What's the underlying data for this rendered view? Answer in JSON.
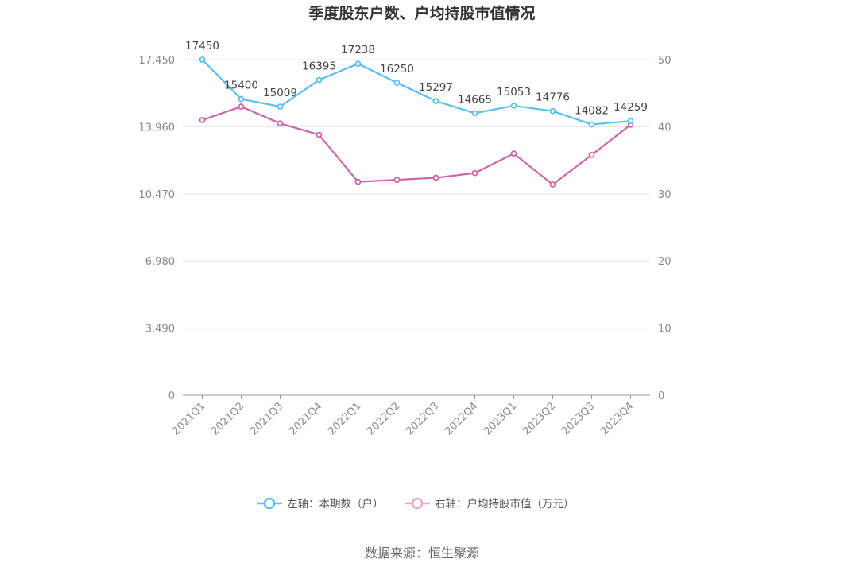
{
  "title": "季度股东户数、户均持股市值情况",
  "source": "数据来源：恒生聚源",
  "colors": {
    "series1": "#5bc0ec",
    "series2": "#cc66aa",
    "series2_legend": "#e8a6cd",
    "grid": "#e2e4f0",
    "axis": "#999999"
  },
  "chart_data": {
    "type": "line",
    "title": "季度股东户数、户均持股市值情况",
    "categories": [
      "2021Q1",
      "2021Q2",
      "2021Q3",
      "2021Q4",
      "2022Q1",
      "2022Q2",
      "2022Q3",
      "2022Q4",
      "2023Q1",
      "2023Q2",
      "2023Q3",
      "2023Q4"
    ],
    "left_axis": {
      "ylim": [
        0,
        17450
      ],
      "ticks": [
        "0",
        "3,490",
        "6,980",
        "10,470",
        "13,960",
        "17,450"
      ]
    },
    "right_axis": {
      "ylim": [
        0,
        50
      ],
      "ticks": [
        "0",
        "10",
        "20",
        "30",
        "40",
        "50"
      ]
    },
    "series": [
      {
        "name": "左轴：本期数（户）",
        "axis": "left",
        "values": [
          17450,
          15400,
          15009,
          16395,
          17238,
          16250,
          15297,
          14665,
          15053,
          14776,
          14082,
          14259
        ],
        "labels": [
          "17450",
          "15400",
          "15009",
          "16395",
          "17238",
          "16250",
          "15297",
          "14665",
          "15053",
          "14776",
          "14082",
          "14259"
        ]
      },
      {
        "name": "右轴：户均持股市值（万元）",
        "axis": "right",
        "values": [
          41.0,
          43.0,
          40.5,
          38.8,
          31.8,
          32.1,
          32.4,
          33.1,
          36.0,
          31.4,
          35.8,
          40.3
        ]
      }
    ],
    "grid": true,
    "legend_position": "bottom"
  }
}
